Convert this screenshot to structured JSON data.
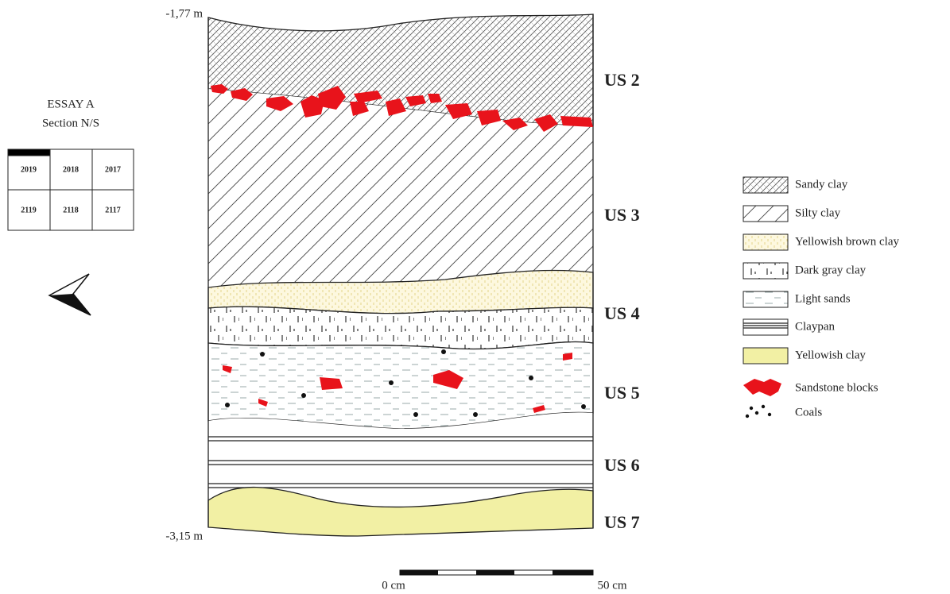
{
  "depth_labels": {
    "top": "-1,77 m",
    "bottom": "-3,15 m"
  },
  "location": {
    "title": "ESSAY A",
    "subtitle": "Section N/S",
    "grid": [
      [
        "2019",
        "2018",
        "2017"
      ],
      [
        "2119",
        "2118",
        "2117"
      ]
    ]
  },
  "units": [
    "US 2",
    "US 3",
    "US 4",
    "US 5",
    "US 6",
    "US 7"
  ],
  "legend": [
    "Sandy clay",
    "Silty clay",
    "Yellowish brown clay",
    "Dark gray clay",
    "Light sands",
    "Claypan",
    "Yellowish clay",
    "Sandstone blocks",
    "Coals"
  ],
  "scale": {
    "start": "0 cm",
    "end": "50 cm"
  }
}
